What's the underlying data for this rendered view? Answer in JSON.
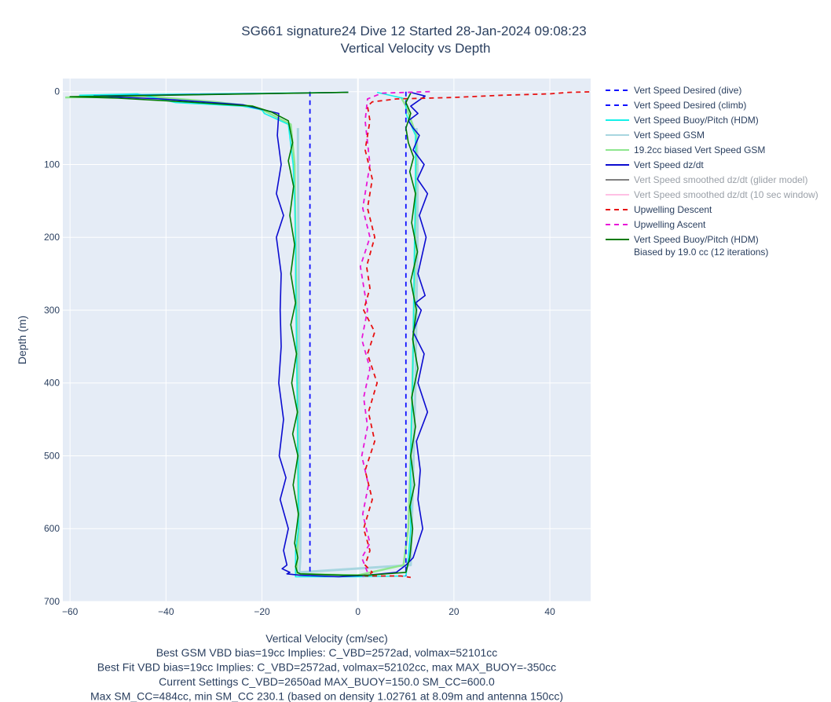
{
  "chart_data": {
    "type": "line",
    "title_lines": [
      "SG661 signature24 Dive 12 Started 28-Jan-2024 09:08:23",
      "Vertical Velocity vs Depth"
    ],
    "xlabel": "Vertical Velocity (cm/sec)",
    "ylabel": "Depth (m)",
    "xlim": [
      -61.5,
      48.5
    ],
    "ylim": [
      700,
      -18
    ],
    "y_reversed": true,
    "grid": true,
    "legend_position": "right",
    "x_ticks": [
      {
        "v": -60,
        "label": "−60"
      },
      {
        "v": -40,
        "label": "−40"
      },
      {
        "v": -20,
        "label": "−20"
      },
      {
        "v": 0,
        "label": "0"
      },
      {
        "v": 20,
        "label": "20"
      },
      {
        "v": 40,
        "label": "40"
      }
    ],
    "y_ticks": [
      {
        "v": 0,
        "label": "0"
      },
      {
        "v": 100,
        "label": "100"
      },
      {
        "v": 200,
        "label": "200"
      },
      {
        "v": 300,
        "label": "300"
      },
      {
        "v": 400,
        "label": "400"
      },
      {
        "v": 500,
        "label": "500"
      },
      {
        "v": 600,
        "label": "600"
      },
      {
        "v": 700,
        "label": "700"
      }
    ],
    "series": [
      {
        "name": "Vert Speed Desired (dive)",
        "color": "#1010ff",
        "dash": "6,5",
        "width": 1.8,
        "faded": false,
        "x": [
          -10,
          -10
        ],
        "y": [
          0,
          665
        ]
      },
      {
        "name": "Vert Speed Desired (climb)",
        "color": "#1010ff",
        "dash": "6,5",
        "width": 1.8,
        "faded": false,
        "x": [
          10,
          10
        ],
        "y": [
          0,
          665
        ]
      },
      {
        "name": "Vert Speed Buoy/Pitch (HDM)",
        "color": "#14f0e8",
        "dash": "",
        "width": 1.6,
        "faded": false,
        "x": [
          -2,
          -58,
          -46,
          -38,
          -24,
          -20,
          -19.5,
          -14.5,
          -13.5,
          -13.2,
          -13,
          -13,
          -12.9,
          -12.8,
          -12.7,
          -12.6,
          -12.5,
          -12.4,
          -12.4,
          -13,
          -13,
          -13,
          0,
          10,
          10.5,
          11,
          11,
          11,
          11.2,
          11.4,
          11.5,
          11.6,
          11.7,
          11.8,
          12,
          12,
          10,
          10,
          4
        ],
        "y": [
          1,
          5,
          3,
          15,
          20,
          25,
          30,
          45,
          100,
          150,
          200,
          250,
          300,
          350,
          400,
          450,
          500,
          550,
          600,
          630,
          664,
          666,
          666,
          665,
          640,
          600,
          550,
          500,
          450,
          400,
          350,
          300,
          250,
          200,
          150,
          60,
          30,
          10,
          1
        ]
      },
      {
        "name": "Vert Speed GSM",
        "color": "#a8d6e0",
        "dash": "",
        "width": 3,
        "faded": false,
        "x": [
          -12.5,
          -12.5,
          -12.4,
          -12.3,
          -12.2,
          -12.1,
          -12,
          -12,
          -12.2,
          11,
          11.2,
          11.4,
          11.6,
          11.8,
          12,
          12.2,
          12.4,
          12.4,
          12.2
        ],
        "y": [
          50,
          100,
          200,
          300,
          400,
          500,
          600,
          640,
          660,
          650,
          600,
          550,
          500,
          450,
          400,
          300,
          200,
          100,
          50
        ]
      },
      {
        "name": "19.2cc biased Vert Speed GSM",
        "color": "#8ee68e",
        "dash": "",
        "width": 2.5,
        "faded": false,
        "x": [
          -61,
          -45,
          -30,
          -22,
          -19,
          -14,
          -13.2,
          -13,
          -12.8,
          -12.6,
          -12.5,
          -12.4,
          -12.6,
          -12.8,
          0,
          9.5,
          10.5,
          11,
          11.2,
          11.5,
          11.8,
          12,
          12.2,
          10,
          9
        ],
        "y": [
          8,
          6,
          14,
          20,
          28,
          45,
          100,
          200,
          300,
          400,
          500,
          600,
          640,
          662,
          664,
          650,
          600,
          500,
          450,
          350,
          250,
          150,
          60,
          20,
          8
        ]
      },
      {
        "name": "Vert Speed dz/dt",
        "color": "#0b0bd0",
        "dash": "",
        "width": 1.6,
        "faded": false,
        "x": [
          -2,
          -55,
          -41,
          -24,
          -16.5,
          -16.8,
          -16,
          -17,
          -15.5,
          -17,
          -16,
          -16.2,
          -16,
          -16.5,
          -15.5,
          -16.4,
          -15,
          -16.2,
          -14.5,
          -15.5,
          -14.8,
          -15.8,
          -14.2,
          -14.8,
          -12,
          -4,
          2,
          8,
          10,
          11.5,
          12.5,
          13.5,
          12.5,
          13,
          12.2,
          14.5,
          12.5,
          13.8,
          11.5,
          13.2,
          12,
          14,
          12.5,
          14.2,
          12.8,
          14.5,
          12.4,
          13.8,
          11.5,
          12.8,
          11.5,
          10.5,
          12.5,
          11,
          14,
          11
        ],
        "y": [
          1,
          6,
          10,
          18,
          30,
          60,
          100,
          140,
          170,
          200,
          250,
          300,
          350,
          400,
          450,
          500,
          530,
          560,
          600,
          630,
          650,
          655,
          660,
          662,
          664,
          666,
          664,
          660,
          650,
          640,
          620,
          600,
          560,
          520,
          480,
          440,
          400,
          360,
          330,
          300,
          290,
          280,
          250,
          200,
          170,
          140,
          120,
          100,
          80,
          60,
          50,
          40,
          30,
          20,
          6,
          1
        ]
      },
      {
        "name": "Vert Speed smoothed dz/dt (glider model)",
        "color": "#808080",
        "dash": "",
        "width": 2,
        "faded": true,
        "x": [],
        "y": []
      },
      {
        "name": "Vert Speed smoothed dz/dt (10 sec window)",
        "color": "#ffc0e4",
        "dash": "",
        "width": 2,
        "faded": true,
        "x": [],
        "y": []
      },
      {
        "name": "Upwelling Descent",
        "color": "#e81010",
        "dash": "6,5",
        "width": 1.8,
        "faded": false,
        "x": [
          50,
          44,
          40,
          30,
          20,
          8,
          3,
          2,
          2.5,
          1.5,
          3,
          2,
          3.5,
          1.8,
          2.5,
          1.2,
          3.5,
          2,
          4,
          2.2,
          3.5,
          1.5,
          3,
          1.2,
          2.5,
          1.5,
          3,
          2,
          1.5,
          5,
          9,
          11
        ],
        "y": [
          0,
          1,
          3,
          5,
          8,
          10,
          14,
          20,
          40,
          80,
          120,
          160,
          200,
          240,
          270,
          300,
          330,
          360,
          400,
          440,
          480,
          520,
          560,
          600,
          630,
          650,
          660,
          664,
          665,
          665,
          665,
          667
        ]
      },
      {
        "name": "Upwelling Ascent",
        "color": "#e815d8",
        "dash": "6,5",
        "width": 1.8,
        "faded": false,
        "x": [
          15,
          5,
          2,
          1.5,
          2.5,
          1,
          2.5,
          0.5,
          2,
          0.8,
          2.5,
          1.2,
          2,
          0.8,
          2.2,
          1,
          2.5,
          0.8,
          2,
          1
        ],
        "y": [
          0,
          2,
          10,
          40,
          100,
          160,
          200,
          240,
          300,
          340,
          380,
          420,
          460,
          500,
          540,
          580,
          620,
          640,
          660,
          666
        ]
      },
      {
        "name": "Vert Speed Buoy/Pitch (HDM)\nBiased by 19.0 cc (12 iterations)",
        "color": "#007a00",
        "dash": "",
        "width": 1.6,
        "faded": false,
        "x": [
          -2,
          -60,
          -50,
          -36,
          -22,
          -18,
          -14.5,
          -13.6,
          -14.5,
          -13.4,
          -14.2,
          -13.2,
          -14,
          -13,
          -14,
          -12.8,
          -13.8,
          -12.6,
          -13.6,
          -12.5,
          -13.5,
          -12.4,
          -13.2,
          -12.5,
          -13,
          -12.6,
          -12,
          -3,
          2,
          10,
          10.8,
          11.4,
          10.8,
          11.8,
          11,
          12,
          11.2,
          12.5,
          11.4,
          12.2,
          11,
          12.4,
          11.2,
          12,
          10.8,
          11.6,
          10.5,
          10,
          11,
          10,
          11
        ],
        "y": [
          1,
          7,
          9,
          14,
          20,
          28,
          40,
          70,
          95,
          130,
          170,
          210,
          250,
          290,
          320,
          360,
          400,
          440,
          470,
          500,
          540,
          580,
          620,
          640,
          652,
          660,
          662,
          664,
          664,
          660,
          640,
          600,
          570,
          540,
          500,
          460,
          420,
          380,
          340,
          300,
          260,
          220,
          180,
          140,
          110,
          90,
          70,
          50,
          30,
          15,
          2
        ]
      }
    ],
    "annotations": [
      "Best GSM VBD bias=19cc Implies: C_VBD=2572ad, volmax=52101cc",
      "Best Fit VBD bias=19cc Implies: C_VBD=2572ad, volmax=52102cc, max MAX_BUOY=-350cc",
      "Current Settings C_VBD=2650ad MAX_BUOY=150.0 SM_CC=600.0",
      "Max SM_CC=484cc, min SM_CC 230.1 (based on density 1.02761 at 8.09m and antenna 150cc)"
    ]
  }
}
